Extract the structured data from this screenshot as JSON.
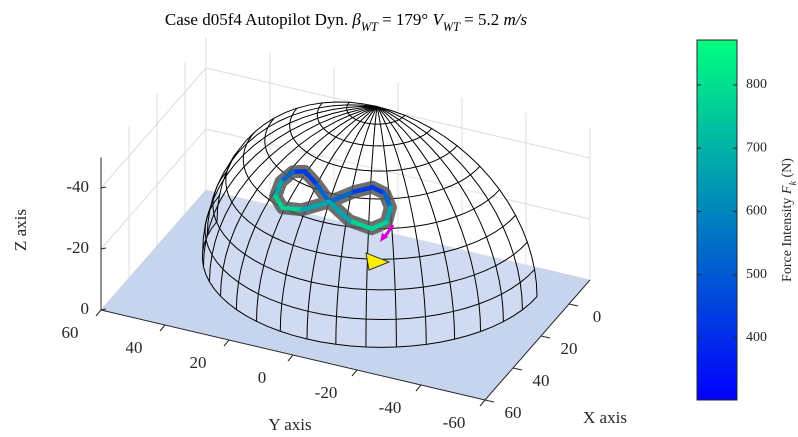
{
  "chart_data": {
    "type": "surface3d",
    "title": [
      {
        "text": "Case d05f4 Autopilot Dyn. "
      },
      {
        "text": "β",
        "style": "italic"
      },
      {
        "text": "WT",
        "style": "sub"
      },
      {
        "text": " = 179° "
      },
      {
        "text": "V",
        "style": "italic"
      },
      {
        "text": "WT",
        "style": "sub"
      },
      {
        "text": " = 5.2 "
      },
      {
        "text": "m/s",
        "style": "italic"
      }
    ],
    "xlabel": "X axis",
    "ylabel": "Y axis",
    "zlabel": "Z axis",
    "xlim": [
      -15,
      60
    ],
    "ylim": [
      -60,
      60
    ],
    "zlim": [
      -50,
      0
    ],
    "zdir": "reverse",
    "xticks": [
      0,
      20,
      40,
      60
    ],
    "yticks": [
      -60,
      -40,
      -20,
      0,
      20,
      40,
      60
    ],
    "zticks": [
      -40,
      -20,
      0
    ],
    "grid": true,
    "dome_radius": 50,
    "trajectory": {
      "x": [
        34.1,
        30.2,
        27.4,
        27.3,
        29.5,
        32.9,
        35.7,
        36.5,
        34.1,
        30.2,
        27.4,
        27.3,
        29.5,
        32.9,
        35.7,
        36.5,
        34.1
      ],
      "y": [
        0,
        6.1,
        10.6,
        14.3,
        17.1,
        17.3,
        13.9,
        7.4,
        0,
        -6.1,
        -10.6,
        -14.3,
        -17.1,
        -17.3,
        -13.9,
        -7.4,
        0
      ],
      "z": [
        -36.6,
        -39.4,
        -40.5,
        -39.4,
        -36.6,
        -33.5,
        -32.1,
        -33.5,
        -36.6,
        -39.4,
        -40.5,
        -39.4,
        -36.6,
        -33.5,
        -32.1,
        -33.5,
        -36.6
      ],
      "values": [
        600,
        459,
        400,
        459,
        600,
        741,
        800,
        741,
        600,
        459,
        400,
        459,
        600,
        741,
        800,
        741,
        600
      ]
    },
    "colorbar": {
      "label": [
        {
          "text": "Force Intensity "
        },
        {
          "text": "F",
          "style": "italic"
        },
        {
          "text": "k",
          "style": "sub"
        },
        {
          "text": " (N)"
        }
      ],
      "clim": [
        302,
        871
      ],
      "ticks": [
        400,
        500,
        600,
        700,
        800
      ],
      "colormap": [
        "#0000ff",
        "#00ff80"
      ]
    }
  }
}
